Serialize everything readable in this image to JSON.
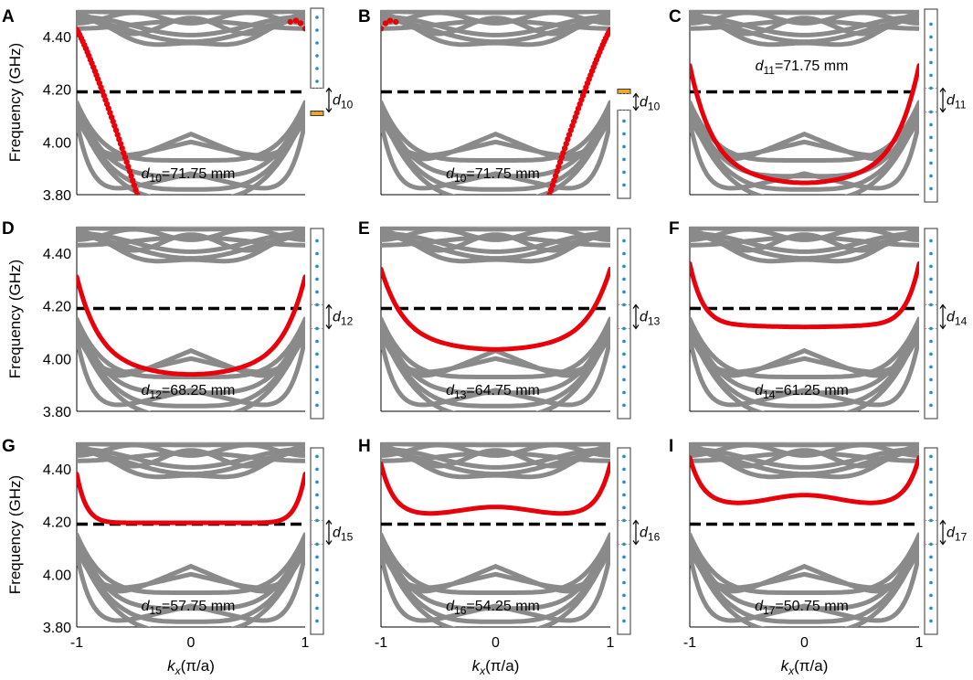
{
  "figure": {
    "xlabel": "k",
    "xlabel_sub": "x",
    "xlabel_unit": "(π/a)",
    "ylabel": "Frequency (GHz)",
    "line_label": "d"
  },
  "colors": {
    "bulk": "#8a8a8a",
    "edge": "#e8000b",
    "dashed": "#000000",
    "site": "#1e8fc8",
    "gold": "#f0a828"
  },
  "chart_data": [
    {
      "letter": "A",
      "type": "line",
      "xlim": [
        -1,
        1
      ],
      "ylim": [
        3.8,
        4.5
      ],
      "xticks": [
        "-1",
        "0",
        "1"
      ],
      "yticks": [
        "3.80",
        "4.00",
        "4.20",
        "4.40"
      ],
      "show_ylabel": true,
      "show_xlabel": false,
      "guided_freq": 4.19,
      "edge_style": "dots",
      "edge_kind": "left",
      "annot_sub": "10",
      "annot_value": "=71.75 mm",
      "side_sub": "10",
      "strip": "A"
    },
    {
      "letter": "B",
      "type": "line",
      "xlim": [
        -1,
        1
      ],
      "ylim": [
        3.8,
        4.5
      ],
      "xticks": [
        "-1",
        "0",
        "1"
      ],
      "yticks": [],
      "show_ylabel": false,
      "show_xlabel": false,
      "guided_freq": 4.19,
      "edge_style": "dots",
      "edge_kind": "right",
      "annot_sub": "10",
      "annot_value": "=71.75 mm",
      "side_sub": "10",
      "strip": "B"
    },
    {
      "letter": "C",
      "type": "line",
      "xlim": [
        -1,
        1
      ],
      "ylim": [
        3.8,
        4.5
      ],
      "xticks": [
        "-1",
        "0",
        "1"
      ],
      "yticks": [],
      "show_ylabel": false,
      "show_xlabel": false,
      "guided_freq": 4.19,
      "edge_style": "line",
      "edge_kind": "U",
      "edge_ends": 4.29,
      "edge_mid": 3.845,
      "annot_sub": "11",
      "annot_value": "=71.75 mm",
      "annot_pos": "top",
      "side_sub": "11",
      "strip": "normal"
    },
    {
      "letter": "D",
      "type": "line",
      "xlim": [
        -1,
        1
      ],
      "ylim": [
        3.8,
        4.5
      ],
      "xticks": [
        "-1",
        "0",
        "1"
      ],
      "yticks": [
        "3.80",
        "4.00",
        "4.20",
        "4.40"
      ],
      "show_ylabel": true,
      "show_xlabel": false,
      "guided_freq": 4.19,
      "edge_style": "line",
      "edge_kind": "U",
      "edge_ends": 4.31,
      "edge_mid": 3.94,
      "annot_sub": "12",
      "annot_value": "=68.25 mm",
      "side_sub": "12",
      "strip": "normal"
    },
    {
      "letter": "E",
      "type": "line",
      "xlim": [
        -1,
        1
      ],
      "ylim": [
        3.8,
        4.5
      ],
      "xticks": [
        "-1",
        "0",
        "1"
      ],
      "yticks": [],
      "show_ylabel": false,
      "show_xlabel": false,
      "guided_freq": 4.19,
      "edge_style": "line",
      "edge_kind": "U",
      "edge_ends": 4.34,
      "edge_mid": 4.035,
      "annot_sub": "13",
      "annot_value": "=64.75 mm",
      "side_sub": "13",
      "strip": "normal"
    },
    {
      "letter": "F",
      "type": "line",
      "xlim": [
        -1,
        1
      ],
      "ylim": [
        3.8,
        4.5
      ],
      "xticks": [
        "-1",
        "0",
        "1"
      ],
      "yticks": [],
      "show_ylabel": false,
      "show_xlabel": false,
      "guided_freq": 4.19,
      "edge_style": "line",
      "edge_kind": "F",
      "edge_ends": 4.36,
      "edge_mid": 4.12,
      "annot_sub": "14",
      "annot_value": "=61.25 mm",
      "side_sub": "14",
      "strip": "normal"
    },
    {
      "letter": "G",
      "type": "line",
      "xlim": [
        -1,
        1
      ],
      "ylim": [
        3.8,
        4.5
      ],
      "xticks": [
        "-1",
        "0",
        "1"
      ],
      "yticks": [
        "3.80",
        "4.00",
        "4.20",
        "4.40"
      ],
      "show_ylabel": true,
      "show_xlabel": true,
      "guided_freq": 4.19,
      "edge_style": "line",
      "edge_kind": "G",
      "edge_ends": 4.38,
      "edge_mid": 4.195,
      "annot_sub": "15",
      "annot_value": "=57.75 mm",
      "side_sub": "15",
      "strip": "normal"
    },
    {
      "letter": "H",
      "type": "line",
      "xlim": [
        -1,
        1
      ],
      "ylim": [
        3.8,
        4.5
      ],
      "xticks": [
        "-1",
        "0",
        "1"
      ],
      "yticks": [],
      "show_ylabel": false,
      "show_xlabel": true,
      "guided_freq": 4.19,
      "edge_style": "line",
      "edge_kind": "W",
      "edge_ends": 4.4,
      "edge_mid": 4.255,
      "edge_min": 4.23,
      "annot_sub": "16",
      "annot_value": "=54.25 mm",
      "side_sub": "16",
      "strip": "normal"
    },
    {
      "letter": "I",
      "type": "line",
      "xlim": [
        -1,
        1
      ],
      "ylim": [
        3.8,
        4.5
      ],
      "xticks": [
        "-1",
        "0",
        "1"
      ],
      "yticks": [],
      "show_ylabel": false,
      "show_xlabel": true,
      "guided_freq": 4.19,
      "edge_style": "line",
      "edge_kind": "W",
      "edge_ends": 4.42,
      "edge_mid": 4.3,
      "edge_min": 4.27,
      "annot_sub": "17",
      "annot_value": "=50.75 mm",
      "side_sub": "17",
      "strip": "normal"
    }
  ]
}
